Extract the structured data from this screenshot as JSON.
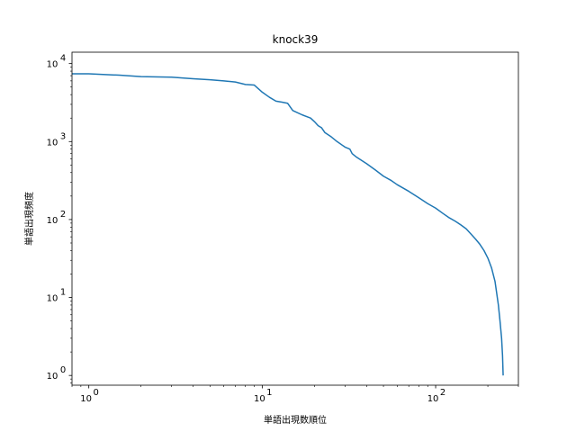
{
  "chart_data": {
    "type": "line",
    "title": "knock39",
    "xlabel": "単語出現数順位",
    "ylabel": "単語出現頻度",
    "xscale": "log",
    "yscale": "log",
    "xlim": [
      0.8,
      300
    ],
    "ylim": [
      0.75,
      14000
    ],
    "grid": false,
    "x_ticks": [
      {
        "value": 1,
        "base": "10",
        "exp": "0"
      },
      {
        "value": 10,
        "base": "10",
        "exp": "1"
      },
      {
        "value": 100,
        "base": "10",
        "exp": "2"
      }
    ],
    "y_ticks": [
      {
        "value": 1,
        "base": "10",
        "exp": "0"
      },
      {
        "value": 10,
        "base": "10",
        "exp": "1"
      },
      {
        "value": 100,
        "base": "10",
        "exp": "2"
      },
      {
        "value": 1000,
        "base": "10",
        "exp": "3"
      },
      {
        "value": 10000,
        "base": "10",
        "exp": "4"
      }
    ],
    "series": [
      {
        "color": "#1f77b4",
        "x": [
          0.8,
          1,
          1.5,
          2,
          3,
          4,
          5,
          6,
          7,
          8,
          9,
          10,
          11,
          12,
          13,
          14,
          15,
          17,
          19,
          20,
          21,
          22,
          23,
          25,
          27,
          30,
          32,
          33,
          35,
          40,
          45,
          50,
          55,
          60,
          70,
          80,
          90,
          100,
          110,
          120,
          130,
          140,
          150,
          160,
          170,
          180,
          190,
          200,
          210,
          220,
          230,
          235,
          240,
          243,
          245
        ],
        "y": [
          7400,
          7400,
          7100,
          6800,
          6700,
          6400,
          6200,
          6000,
          5800,
          5400,
          5300,
          4300,
          3700,
          3300,
          3200,
          3100,
          2500,
          2200,
          2000,
          1800,
          1600,
          1500,
          1300,
          1150,
          1000,
          850,
          800,
          700,
          630,
          520,
          430,
          360,
          320,
          280,
          230,
          190,
          160,
          140,
          120,
          105,
          95,
          85,
          76,
          65,
          56,
          48,
          40,
          32,
          24,
          16,
          8,
          5,
          3,
          1.8,
          1
        ]
      }
    ]
  }
}
